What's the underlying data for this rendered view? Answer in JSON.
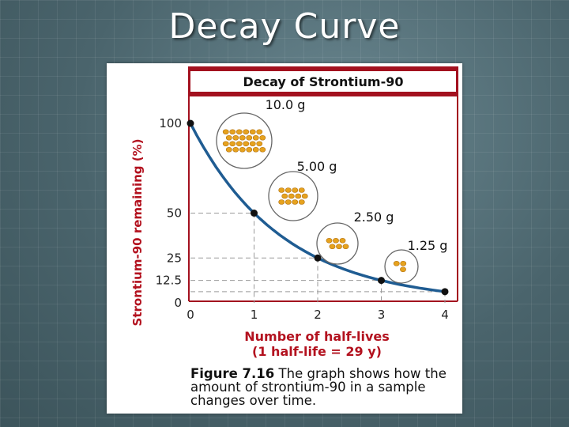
{
  "slide": {
    "title": "Decay Curve"
  },
  "figure": {
    "caption_number": "Figure 7.16",
    "caption_text": "The graph shows how the amount of strontium-90 in a sample changes over time."
  },
  "chart_data": {
    "type": "line",
    "title": "Decay of Strontium-90",
    "xlabel": "Number of half-lives",
    "xlabel_line2": "(1 half-life = 29 y)",
    "ylabel": "Strontium-90 remaining (%)",
    "x_ticks": [
      "0",
      "1",
      "2",
      "3",
      "4"
    ],
    "y_ticks": [
      "0",
      "12.5",
      "25",
      "50",
      "100"
    ],
    "xlim": [
      0,
      4
    ],
    "ylim": [
      0,
      100
    ],
    "series": [
      {
        "x": [
          0,
          1,
          2,
          3,
          4
        ],
        "values": [
          100,
          50,
          25,
          12.5,
          6.25
        ]
      }
    ],
    "sample_masses": [
      "10.0 g",
      "5.00 g",
      "2.50 g",
      "1.25 g"
    ],
    "sample_dot_counts": [
      24,
      12,
      6,
      3
    ],
    "colors": {
      "title_bar": "#a3111f",
      "axis_label": "#b3121f",
      "curve": "#1f5c92",
      "dots": "#e6a21e",
      "guide_lines": "#9a9a9a"
    }
  }
}
